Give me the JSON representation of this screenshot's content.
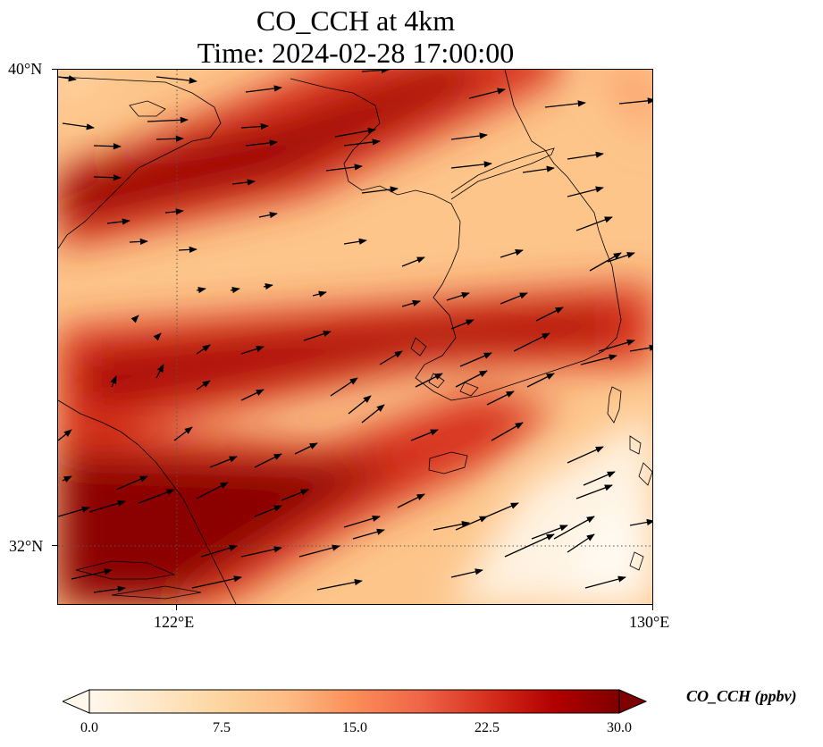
{
  "title": {
    "line1": "CO_CCH at 4km",
    "line2": "Time: 2024-02-28 17:00:00"
  },
  "map": {
    "lon_range": [
      120.4,
      130.0
    ],
    "lat_range": [
      31.1,
      40.0
    ],
    "gridlines": {
      "lon": [
        122.0
      ],
      "lat": [
        32.0
      ],
      "style": "dotted"
    },
    "x_ticks": [
      "122°E",
      "130°E"
    ],
    "y_ticks": [
      "40°N",
      "32°N"
    ],
    "field": "CO_CCH",
    "units": "ppbv",
    "arrows": "wind vectors, predominantly westerly (pointing east / east-northeast)"
  },
  "colorbar": {
    "label": "CO_CCH (ppbv)",
    "min": 0.0,
    "max": 30.0,
    "ticks": [
      "0.0",
      "7.5",
      "15.0",
      "22.5",
      "30.0"
    ],
    "extend": "both",
    "colormap": "OrRd",
    "colors": [
      "#fff7ec",
      "#fee8c8",
      "#fdd49e",
      "#fdbb84",
      "#fc8d59",
      "#ef6548",
      "#d7301f",
      "#b30000",
      "#7f0000"
    ]
  }
}
